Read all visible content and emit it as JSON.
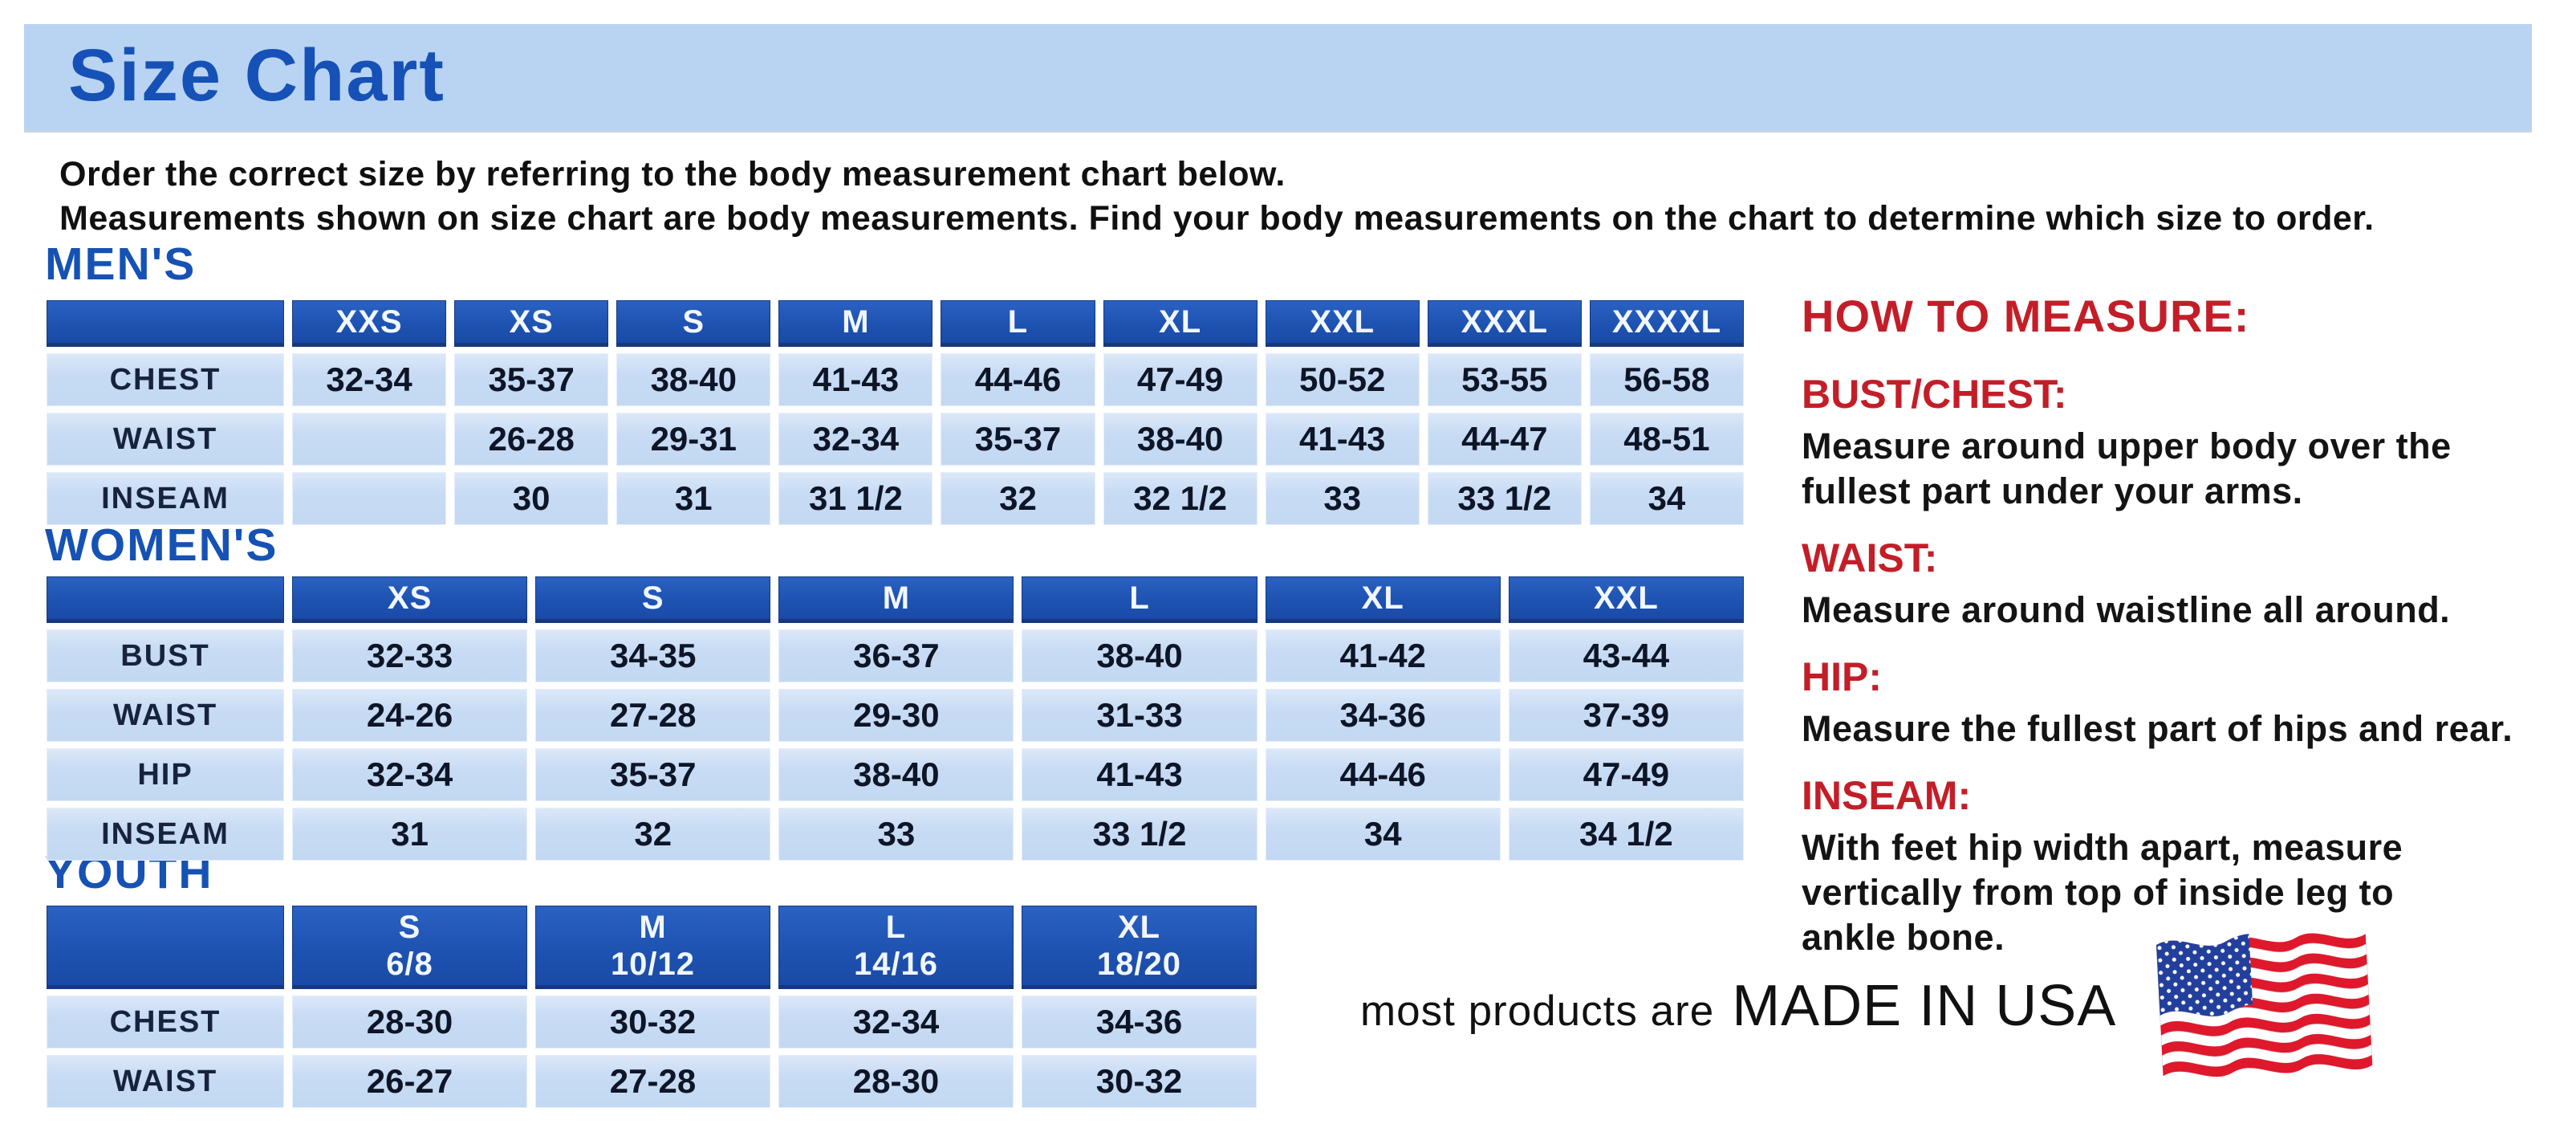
{
  "page": {
    "title": "Size Chart",
    "intro_line1": "Order the correct size by referring to the body measurement chart below.",
    "intro_line2": "Measurements shown on size chart are body measurements.  Find your body measurements on the chart to determine which size to order."
  },
  "tables": {
    "mens": {
      "heading": "MEN'S",
      "columns": [
        "",
        "XXS",
        "XS",
        "S",
        "M",
        "L",
        "XL",
        "XXL",
        "XXXL",
        "XXXXL"
      ],
      "rows": [
        {
          "label": "CHEST",
          "values": [
            "32-34",
            "35-37",
            "38-40",
            "41-43",
            "44-46",
            "47-49",
            "50-52",
            "53-55",
            "56-58"
          ]
        },
        {
          "label": "WAIST",
          "values": [
            "",
            "26-28",
            "29-31",
            "32-34",
            "35-37",
            "38-40",
            "41-43",
            "44-47",
            "48-51"
          ]
        },
        {
          "label": "INSEAM",
          "values": [
            "",
            "30",
            "31",
            "31 1/2",
            "32",
            "32 1/2",
            "33",
            "33 1/2",
            "34"
          ]
        }
      ]
    },
    "womens": {
      "heading": "WOMEN'S",
      "columns": [
        "",
        "XS",
        "S",
        "M",
        "L",
        "XL",
        "XXL"
      ],
      "rows": [
        {
          "label": "BUST",
          "values": [
            "32-33",
            "34-35",
            "36-37",
            "38-40",
            "41-42",
            "43-44"
          ]
        },
        {
          "label": "WAIST",
          "values": [
            "24-26",
            "27-28",
            "29-30",
            "31-33",
            "34-36",
            "37-39"
          ]
        },
        {
          "label": "HIP",
          "values": [
            "32-34",
            "35-37",
            "38-40",
            "41-43",
            "44-46",
            "47-49"
          ]
        },
        {
          "label": "INSEAM",
          "values": [
            "31",
            "32",
            "33",
            "33 1/2",
            "34",
            "34 1/2"
          ]
        }
      ]
    },
    "youth": {
      "heading": "YOUTH",
      "columns": [
        "",
        "S\n6/8",
        "M\n10/12",
        "L\n14/16",
        "XL\n18/20"
      ],
      "rows": [
        {
          "label": "CHEST",
          "values": [
            "28-30",
            "30-32",
            "32-34",
            "34-36"
          ]
        },
        {
          "label": "WAIST",
          "values": [
            "26-27",
            "27-28",
            "28-30",
            "30-32"
          ]
        }
      ]
    }
  },
  "how_to_measure": {
    "heading": "HOW TO MEASURE:",
    "sections": [
      {
        "label": "BUST/CHEST:",
        "text": "Measure around upper body over the\nfullest part under your arms."
      },
      {
        "label": "WAIST:",
        "text": "Measure around waistline all around."
      },
      {
        "label": "HIP:",
        "text": "Measure the fullest part of hips and rear."
      },
      {
        "label": "INSEAM:",
        "text": "With feet hip width apart, measure\nvertically from top of inside leg to\nankle bone."
      }
    ]
  },
  "footer": {
    "prefix": "most products are",
    "made_in": "MADE IN USA",
    "flag": "usa-flag"
  },
  "colors": {
    "banner_blue": "#b9d3f3",
    "title_blue": "#1551b6",
    "header_blue": "#1e53b2",
    "cell_blue": "#c7dbf4",
    "red": "#c31e28",
    "flag_red": "#e0182b",
    "flag_blue": "#233f9c"
  }
}
